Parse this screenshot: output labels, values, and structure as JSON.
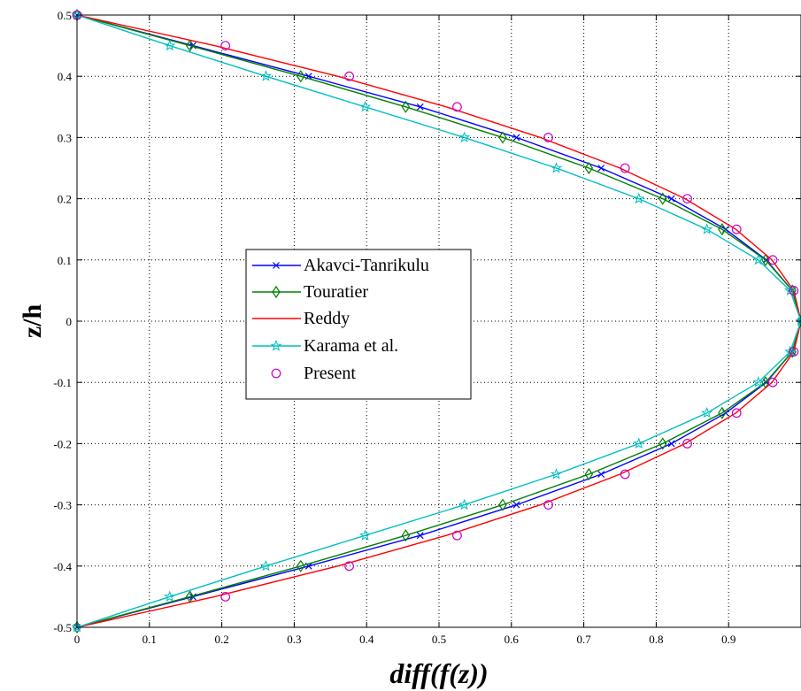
{
  "chart_data": {
    "type": "line",
    "xlabel": "diff(f(z))",
    "ylabel": "z/h",
    "xlim": [
      0,
      1
    ],
    "ylim": [
      -0.5,
      0.5
    ],
    "xticks": [
      0,
      0.1,
      0.2,
      0.3,
      0.4,
      0.5,
      0.6,
      0.7,
      0.8,
      0.9
    ],
    "xtick_labels": [
      "0",
      "0.1",
      "0.2",
      "0.3",
      "0.4",
      "0.5",
      "0.6",
      "0.7",
      "0.8",
      "0.9"
    ],
    "yticks": [
      0.5,
      0.4,
      0.3,
      0.2,
      0.1,
      0,
      -0.1,
      -0.2,
      -0.3,
      -0.4,
      -0.5
    ],
    "ytick_labels": [
      "0.5",
      "0.4",
      "0.3",
      "0.2",
      "0.1",
      "0",
      "-0.1",
      "-0.2",
      "-0.3",
      "-0.4",
      "-0.5"
    ],
    "grid": true,
    "legend_position": "center-left",
    "series": [
      {
        "name": "Akavci-Tanrikulu",
        "color": "#0000ff",
        "line": true,
        "marker": "x",
        "z": [
          -0.5,
          -0.45,
          -0.4,
          -0.35,
          -0.3,
          -0.25,
          -0.2,
          -0.15,
          -0.1,
          -0.05,
          0,
          0.05,
          0.1,
          0.15,
          0.2,
          0.25,
          0.3,
          0.35,
          0.4,
          0.45,
          0.5
        ],
        "x": [
          0,
          0.16,
          0.32,
          0.474,
          0.607,
          0.724,
          0.821,
          0.896,
          0.952,
          0.988,
          1,
          0.988,
          0.952,
          0.896,
          0.821,
          0.724,
          0.607,
          0.474,
          0.32,
          0.16,
          0
        ]
      },
      {
        "name": "Touratier",
        "color": "#008000",
        "line": true,
        "marker": "diamond",
        "z": [
          -0.5,
          -0.45,
          -0.4,
          -0.35,
          -0.3,
          -0.25,
          -0.2,
          -0.15,
          -0.1,
          -0.05,
          0,
          0.05,
          0.1,
          0.15,
          0.2,
          0.25,
          0.3,
          0.35,
          0.4,
          0.45,
          0.5
        ],
        "x": [
          0,
          0.156,
          0.309,
          0.454,
          0.588,
          0.707,
          0.809,
          0.891,
          0.951,
          0.988,
          1,
          0.988,
          0.951,
          0.891,
          0.809,
          0.707,
          0.588,
          0.454,
          0.309,
          0.156,
          0
        ]
      },
      {
        "name": "Reddy",
        "color": "#ff0000",
        "line": true,
        "marker": "none",
        "z": [
          -0.5,
          -0.45,
          -0.4,
          -0.35,
          -0.3,
          -0.25,
          -0.2,
          -0.15,
          -0.1,
          -0.05,
          0,
          0.05,
          0.1,
          0.15,
          0.2,
          0.25,
          0.3,
          0.35,
          0.4,
          0.45,
          0.5
        ],
        "x": [
          0,
          0.19,
          0.36,
          0.51,
          0.64,
          0.75,
          0.84,
          0.91,
          0.96,
          0.99,
          1,
          0.99,
          0.96,
          0.91,
          0.84,
          0.75,
          0.64,
          0.51,
          0.36,
          0.19,
          0
        ]
      },
      {
        "name": "Karama et al.",
        "color": "#00bfbf",
        "line": true,
        "marker": "star",
        "z": [
          -0.5,
          -0.45,
          -0.4,
          -0.35,
          -0.3,
          -0.25,
          -0.2,
          -0.15,
          -0.1,
          -0.05,
          0,
          0.05,
          0.1,
          0.15,
          0.2,
          0.25,
          0.3,
          0.35,
          0.4,
          0.45,
          0.5
        ],
        "x": [
          0,
          0.128,
          0.261,
          0.398,
          0.535,
          0.662,
          0.776,
          0.87,
          0.941,
          0.985,
          1,
          0.985,
          0.941,
          0.87,
          0.776,
          0.662,
          0.535,
          0.398,
          0.261,
          0.128,
          0
        ]
      },
      {
        "name": "Present",
        "color": "#cc00cc",
        "line": false,
        "marker": "circle",
        "z": [
          -0.45,
          -0.4,
          -0.35,
          -0.3,
          -0.25,
          -0.2,
          -0.15,
          -0.1,
          -0.05,
          0.05,
          0.1,
          0.15,
          0.2,
          0.25,
          0.3,
          0.35,
          0.4,
          0.45,
          0.5
        ],
        "x": [
          0.205,
          0.376,
          0.525,
          0.651,
          0.757,
          0.843,
          0.911,
          0.961,
          0.99,
          0.99,
          0.961,
          0.911,
          0.843,
          0.757,
          0.651,
          0.525,
          0.376,
          0.205,
          0
        ]
      }
    ]
  }
}
